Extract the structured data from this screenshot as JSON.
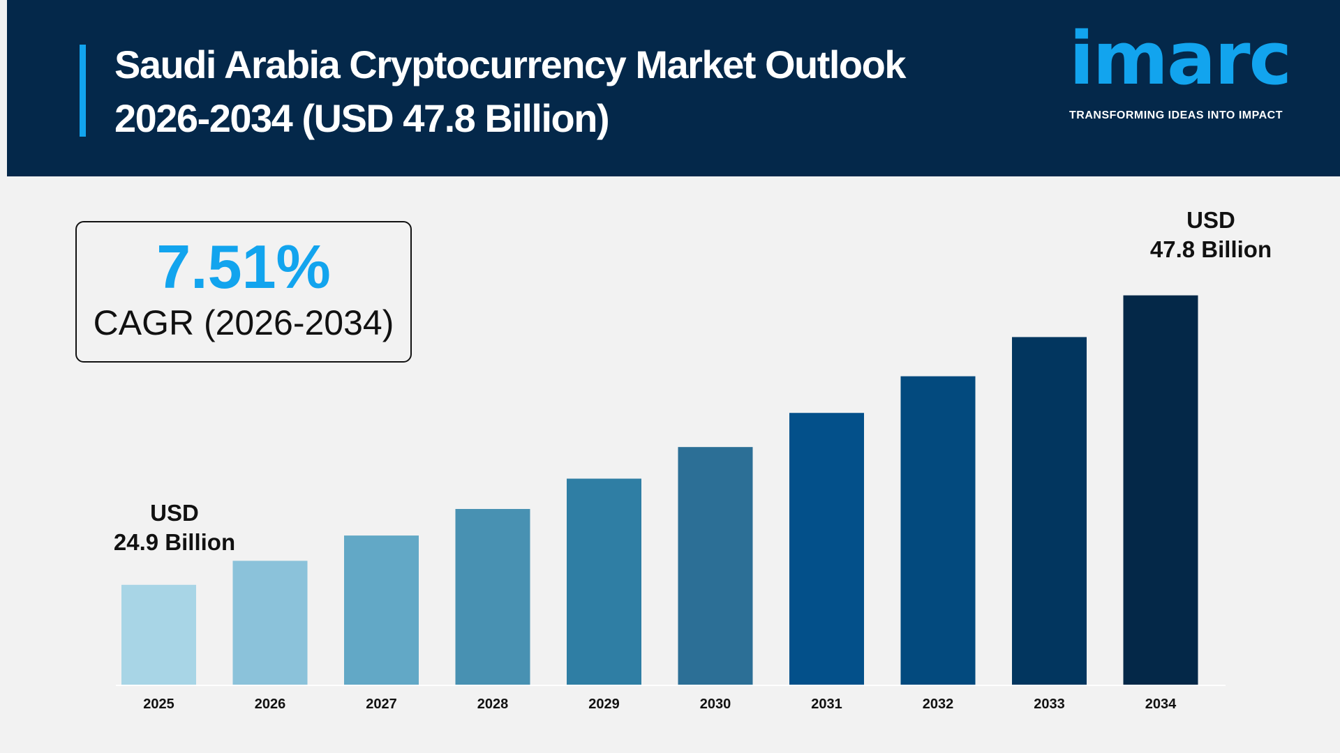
{
  "header": {
    "title_line1": "Saudi Arabia Cryptocurrency Market Outlook",
    "title_line2": "2026-2034 (USD 47.8 Billion)",
    "logo_text": "imarc",
    "logo_tagline": "TRANSFORMING IDEAS INTO IMPACT"
  },
  "cagr": {
    "value": "7.51%",
    "label": "CAGR (2026-2034)"
  },
  "labels": {
    "start_line1": "USD",
    "start_line2": "24.9 Billion",
    "end_line1": "USD",
    "end_line2": "47.8 Billion"
  },
  "colors": {
    "header_bg": "#04284a",
    "accent": "#12a4ee",
    "background": "#f2f2f2"
  },
  "chart_data": {
    "type": "bar",
    "title": "Saudi Arabia Cryptocurrency Market Outlook 2026-2034 (USD 47.8 Billion)",
    "categories": [
      "2025",
      "2026",
      "2027",
      "2028",
      "2029",
      "2030",
      "2031",
      "2032",
      "2033",
      "2034"
    ],
    "values": [
      24.9,
      26.8,
      28.8,
      30.9,
      33.3,
      35.8,
      38.5,
      41.4,
      44.5,
      47.8
    ],
    "unit": "USD Billion",
    "ylim": [
      17,
      48
    ],
    "grid": false,
    "bar_colors": [
      "#a8d5e6",
      "#8bc2da",
      "#62a8c6",
      "#4891b2",
      "#2f7ea4",
      "#2c6f96",
      "#03508a",
      "#034a7e",
      "#02365f",
      "#042848"
    ]
  }
}
